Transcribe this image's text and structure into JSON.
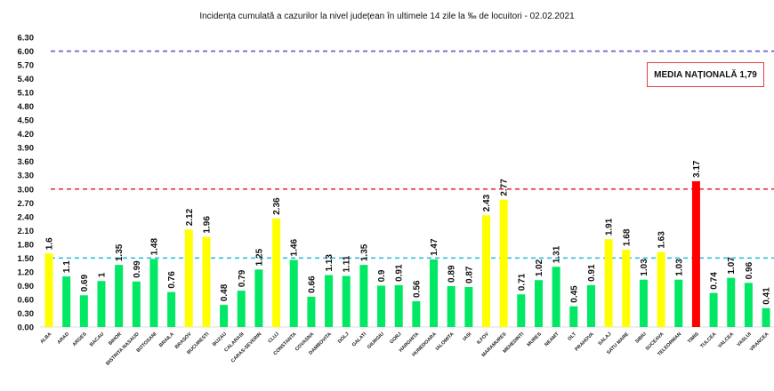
{
  "chart_data": {
    "type": "bar",
    "title": "Incidența cumulată a cazurilor la nivel județean în ultimele 14 zile   la ‰ de locuitori  - 02.02.2021",
    "categories": [
      "ALBA",
      "ARAD",
      "ARGES",
      "BACAU",
      "BIHOR",
      "BISTRITA NASAUD",
      "BOTOSANI",
      "BRAILA",
      "BRASOV",
      "BUCURESTI",
      "BUZAU",
      "CALARASI",
      "CARAS-SEVERIN",
      "CLUJ",
      "CONSTANTA",
      "COVASNA",
      "DAMBOVITA",
      "DOLJ",
      "GALATI",
      "GIURGIU",
      "GORJ",
      "HARGHITA",
      "HUNEDOARA",
      "IALOMITA",
      "IASI",
      "ILFOV",
      "MARAMURES",
      "MEHEDINTI",
      "MURES",
      "NEAMT",
      "OLT",
      "PRAHOVA",
      "SALAJ",
      "SATU MARE",
      "SIBIU",
      "SUCEAVA",
      "TELEORMAN",
      "TIMIS",
      "TULCEA",
      "VALCEA",
      "VASLUI",
      "VRANCEA"
    ],
    "values": [
      1.6,
      1.1,
      0.69,
      1,
      1.35,
      0.99,
      1.48,
      0.76,
      2.12,
      1.96,
      0.48,
      0.79,
      1.25,
      2.36,
      1.46,
      0.66,
      1.13,
      1.11,
      1.35,
      0.9,
      0.91,
      0.56,
      1.47,
      0.89,
      0.87,
      2.43,
      2.77,
      0.71,
      1.02,
      1.31,
      0.45,
      0.91,
      1.91,
      1.68,
      1.03,
      1.63,
      1.03,
      3.17,
      0.74,
      1.07,
      0.96,
      0.41
    ],
    "yticks": [
      "0.00",
      "0.30",
      "0.60",
      "0.90",
      "1.20",
      "1.50",
      "1.80",
      "2.10",
      "2.40",
      "2.70",
      "3.00",
      "3.30",
      "3.60",
      "3.90",
      "4.20",
      "4.50",
      "4.80",
      "5.10",
      "5.40",
      "5.70",
      "6.00",
      "6.30"
    ],
    "ylim": [
      0,
      6.3
    ],
    "xlabel": "",
    "ylabel": "",
    "grid": false,
    "reference_lines": [
      {
        "value": 6.0,
        "color": "#6655cc",
        "style": "dashed"
      },
      {
        "value": 3.0,
        "color": "#e8202a",
        "style": "dashed"
      },
      {
        "value": 1.5,
        "color": "#22b8e0",
        "style": "dashed"
      }
    ],
    "bar_colors": {
      "below_1_5": "#00e864",
      "from_1_5_to_3": "#ffff00",
      "above_3": "#ff0000"
    },
    "annotation": "MEDIA NAȚIONALĂ 1,79"
  }
}
